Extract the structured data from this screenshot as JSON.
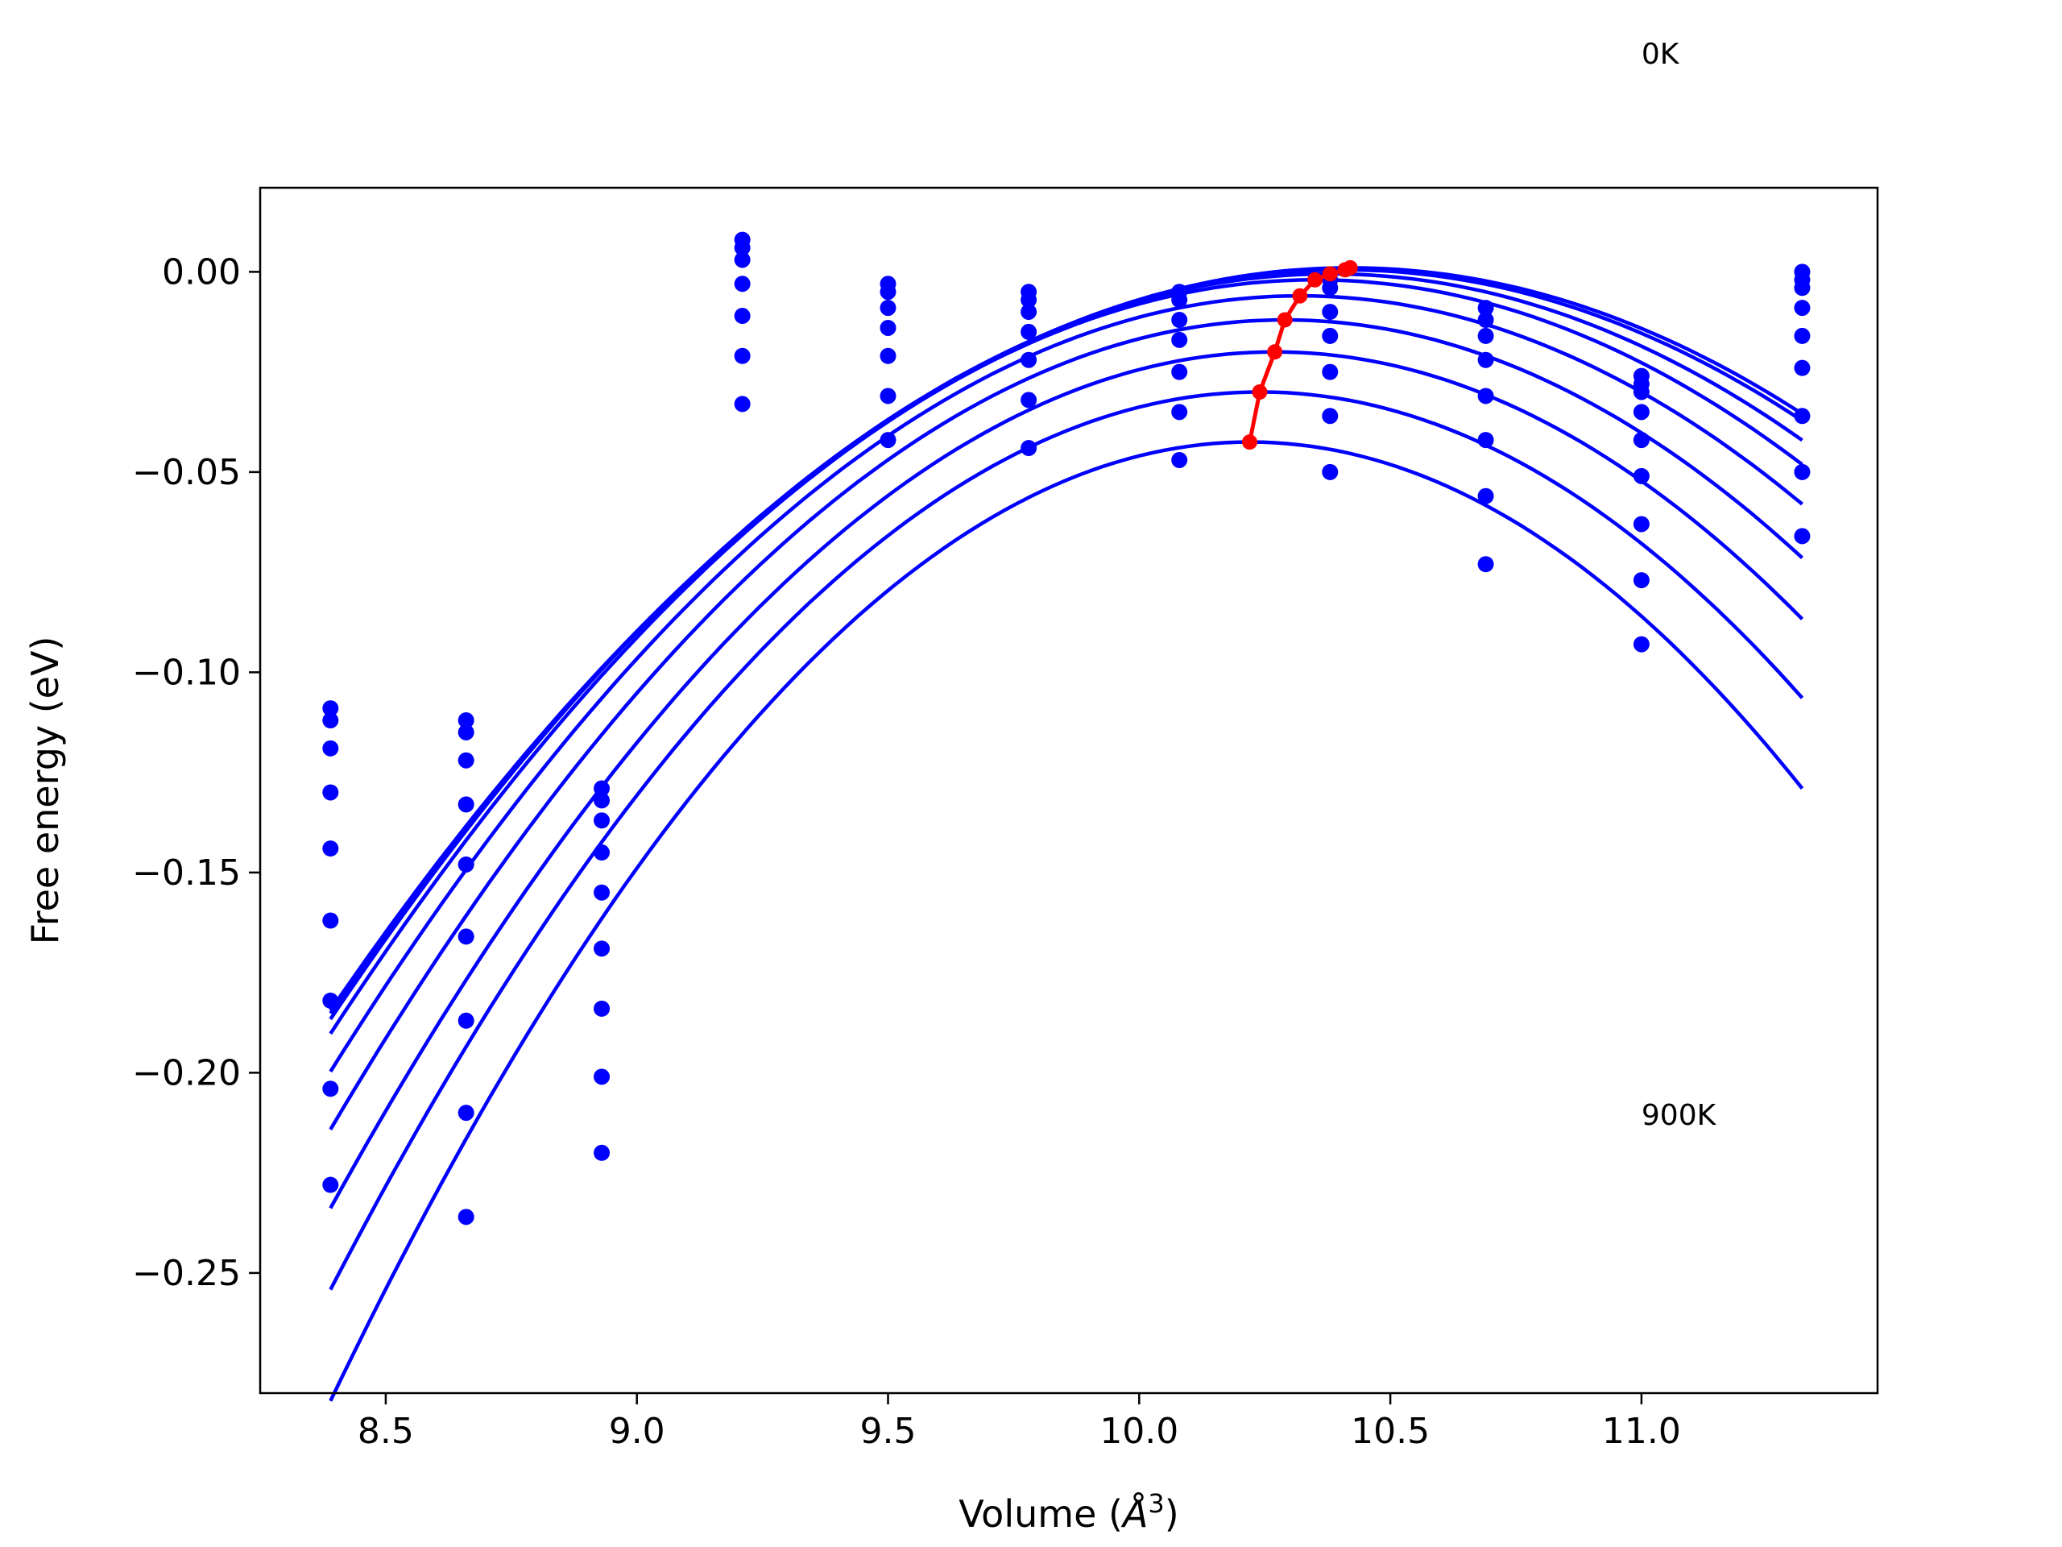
{
  "chart_data": {
    "type": "scatter",
    "title": "",
    "xlabel": "Volume (",
    "xlabel_unit": "Å",
    "xlabel_exp": "3",
    "xlabel_close": ")",
    "ylabel": "Free energy (eV)",
    "xlim": [
      8.25,
      11.47
    ],
    "ylim": [
      -0.28,
      0.021
    ],
    "xticks": [
      8.5,
      9.0,
      9.5,
      10.0,
      10.5,
      11.0
    ],
    "xtick_labels": [
      "8.5",
      "9.0",
      "9.5",
      "10.0",
      "10.5",
      "11.0"
    ],
    "yticks": [
      0.0,
      -0.05,
      -0.1,
      -0.15,
      -0.2,
      -0.25
    ],
    "ytick_labels": [
      "0.00",
      "−0.05",
      "−0.10",
      "−0.15",
      "−0.20",
      "−0.25"
    ],
    "annotations": [
      {
        "text": "0K",
        "x": 11.0,
        "y": 0.052
      },
      {
        "text": "900K",
        "x": 11.0,
        "y": -0.213
      }
    ],
    "grid": false,
    "colors": {
      "points": "#0000ff",
      "curves": "#0000ff",
      "minimum_path": "#ff0000"
    },
    "volumes": [
      8.39,
      8.66,
      8.93,
      9.21,
      9.5,
      9.78,
      10.08,
      10.38,
      10.69,
      11.0,
      11.32
    ],
    "points": [
      [
        -0.109,
        -0.112,
        -0.119,
        -0.13,
        -0.144,
        -0.162,
        -0.182,
        -0.204,
        -0.228
      ],
      [
        -0.112,
        -0.115,
        -0.122,
        -0.133,
        -0.148,
        -0.166,
        -0.187,
        -0.21,
        -0.236
      ],
      [
        -0.129,
        -0.132,
        -0.137,
        -0.145,
        -0.155,
        -0.169,
        -0.184,
        -0.201,
        -0.22
      ],
      [
        0.008,
        0.006,
        0.003,
        -0.003,
        -0.011,
        -0.021,
        -0.033
      ],
      [
        -0.003,
        -0.005,
        -0.009,
        -0.014,
        -0.021,
        -0.031,
        -0.042
      ],
      [
        -0.005,
        -0.007,
        -0.01,
        -0.015,
        -0.022,
        -0.032,
        -0.044
      ],
      [
        -0.005,
        -0.007,
        -0.012,
        -0.017,
        -0.025,
        -0.035,
        -0.047
      ],
      [
        -0.002,
        -0.004,
        -0.01,
        -0.016,
        -0.025,
        -0.036,
        -0.05
      ],
      [
        -0.009,
        -0.012,
        -0.016,
        -0.022,
        -0.031,
        -0.042,
        -0.056,
        -0.073
      ],
      [
        -0.026,
        -0.028,
        -0.03,
        -0.035,
        -0.042,
        -0.051,
        -0.063,
        -0.077,
        -0.093
      ],
      [
        0.0,
        -0.002,
        -0.004,
        -0.009,
        -0.016,
        -0.024,
        -0.036,
        -0.05,
        -0.066
      ]
    ],
    "fits": [
      {
        "v0": 10.42,
        "e0": 0.001,
        "a": 0.045
      },
      {
        "v0": 10.41,
        "e0": 0.0005,
        "a": 0.0455
      },
      {
        "v0": 10.38,
        "e0": -0.0005,
        "a": 0.047
      },
      {
        "v0": 10.35,
        "e0": -0.002,
        "a": 0.049
      },
      {
        "v0": 10.32,
        "e0": -0.006,
        "a": 0.052
      },
      {
        "v0": 10.29,
        "e0": -0.012,
        "a": 0.056
      },
      {
        "v0": 10.27,
        "e0": -0.02,
        "a": 0.0605
      },
      {
        "v0": 10.24,
        "e0": -0.03,
        "a": 0.0655
      },
      {
        "v0": 10.22,
        "e0": -0.0425,
        "a": 0.0715
      }
    ],
    "fit_range": [
      8.39,
      11.32
    ],
    "minimum_path": [
      [
        10.42,
        0.001
      ],
      [
        10.41,
        0.0005
      ],
      [
        10.38,
        -0.0005
      ],
      [
        10.35,
        -0.002
      ],
      [
        10.32,
        -0.006
      ],
      [
        10.29,
        -0.012
      ],
      [
        10.27,
        -0.02
      ],
      [
        10.24,
        -0.03
      ],
      [
        10.22,
        -0.0425
      ]
    ]
  }
}
